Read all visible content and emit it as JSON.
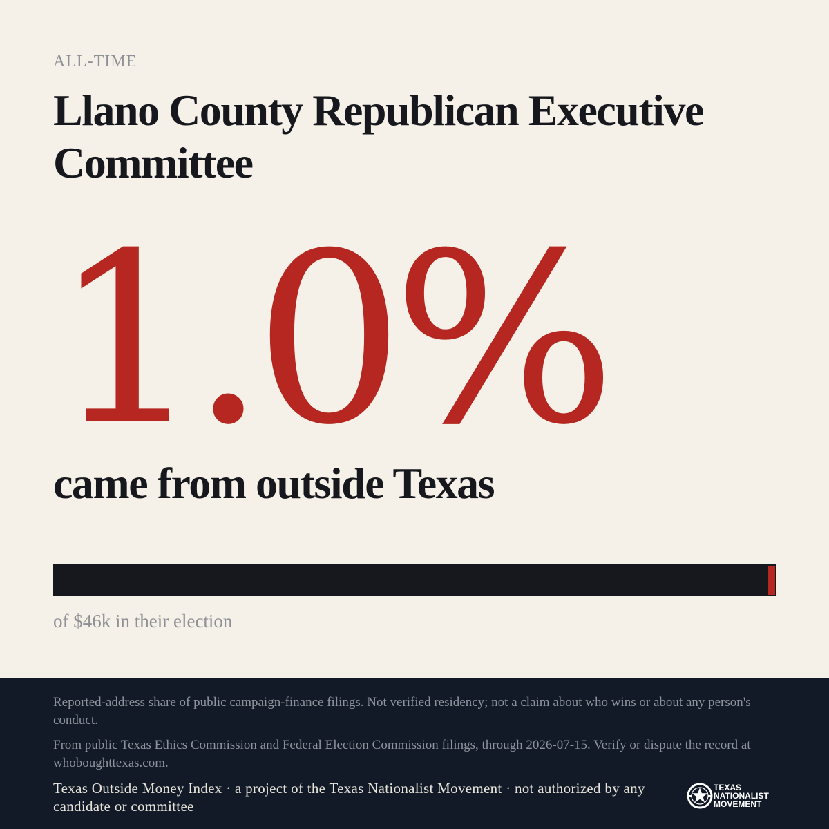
{
  "header": {
    "eyebrow": "ALL-TIME",
    "title": "Llano County Republican Executive Committee"
  },
  "stat": {
    "value": "1.0%",
    "caption": "came from outside Texas",
    "share_fraction": 0.01,
    "total_note": "of $46k in their election"
  },
  "colors": {
    "background": "#f5f0e8",
    "accent_red": "#b52720",
    "ink": "#16181d",
    "footer_bg": "#111a26"
  },
  "footer": {
    "disclaimer": "Reported-address share of public campaign-finance filings. Not verified residency; not a claim about who wins or about any person's conduct.",
    "source": "From public Texas Ethics Commission and Federal Election Commission filings, through 2026-07-15. Verify or dispute the record at whoboughttexas.com.",
    "credit": "Texas Outside Money Index · a project of the Texas Nationalist Movement · not authorized by any candidate or committee",
    "logo": {
      "line1": "TEXAS",
      "line2": "NATIONALIST",
      "line3": "MOVEMENT",
      "icon": "star-emblem-icon"
    }
  }
}
